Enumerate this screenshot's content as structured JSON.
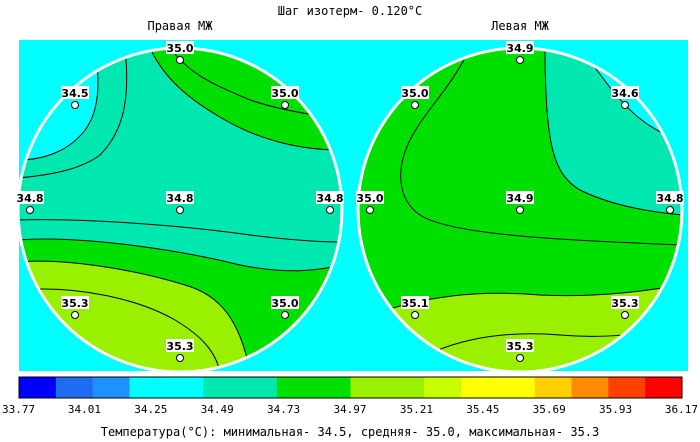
{
  "chart_data": {
    "type": "heatmap",
    "title": "Шаг изотерм- 0.120°С",
    "panels": [
      {
        "name": "Правая МЖ",
        "points": [
          {
            "pos": "top",
            "value": "35.0"
          },
          {
            "pos": "upper-left",
            "value": "34.5"
          },
          {
            "pos": "upper-right",
            "value": "35.0"
          },
          {
            "pos": "left",
            "value": "34.8"
          },
          {
            "pos": "center",
            "value": "34.8"
          },
          {
            "pos": "right",
            "value": "34.8"
          },
          {
            "pos": "lower-left",
            "value": "35.3"
          },
          {
            "pos": "lower-right",
            "value": "35.0"
          },
          {
            "pos": "bottom",
            "value": "35.3"
          }
        ]
      },
      {
        "name": "Левая МЖ",
        "points": [
          {
            "pos": "top",
            "value": "34.9"
          },
          {
            "pos": "upper-left",
            "value": "35.0"
          },
          {
            "pos": "upper-right",
            "value": "34.6"
          },
          {
            "pos": "left",
            "value": "35.0"
          },
          {
            "pos": "center",
            "value": "34.9"
          },
          {
            "pos": "right",
            "value": "34.8"
          },
          {
            "pos": "lower-left",
            "value": "35.1"
          },
          {
            "pos": "lower-right",
            "value": "35.3"
          },
          {
            "pos": "bottom",
            "value": "35.3"
          }
        ]
      }
    ],
    "colorscale": {
      "ticks": [
        "33.77",
        "34.01",
        "34.25",
        "34.49",
        "34.73",
        "34.97",
        "35.21",
        "35.45",
        "35.69",
        "35.93",
        "36.17"
      ],
      "colors": [
        "#0000ff",
        "#1e6cf0",
        "#1e90ff",
        "#00ffff",
        "#00ffff",
        "#00e8b0",
        "#00e8b0",
        "#00e000",
        "#00e000",
        "#99f000",
        "#99f000",
        "#c8ff00",
        "#ffff00",
        "#ffff00",
        "#ffd000",
        "#ff8c00",
        "#ff4000",
        "#ff0000"
      ]
    },
    "stats_text": "Температура(°С): минимальная-  34.5, средняя-  35.0, максимальная-  35.3"
  },
  "colors": {
    "background": "#00ffff",
    "zone_cool": "#00e8b0",
    "zone_mid": "#00e000",
    "zone_warm": "#99f000"
  }
}
